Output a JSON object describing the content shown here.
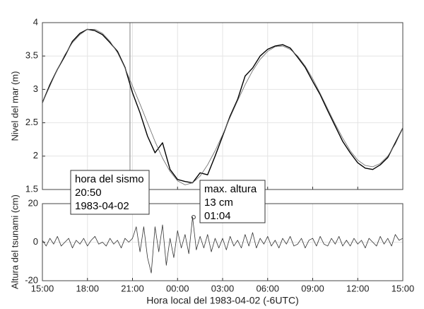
{
  "chart_data": [
    {
      "type": "line",
      "ylabel": "Nivel del mar (m)",
      "xlim": [
        0,
        24
      ],
      "xticks": [
        0,
        3,
        6,
        9,
        12,
        15,
        18,
        21,
        24
      ],
      "ylim": [
        1.5,
        4
      ],
      "yticks": [
        1.5,
        2,
        2.5,
        3,
        3.5,
        4
      ],
      "grid": true,
      "event_x": 5.833,
      "event_color": "#999999",
      "x": [
        0,
        0.5,
        1,
        1.5,
        2,
        2.5,
        3,
        3.5,
        4,
        4.5,
        5,
        5.5,
        6,
        6.5,
        7,
        7.5,
        8,
        8.5,
        9,
        9.5,
        10,
        10.5,
        11,
        11.5,
        12,
        12.5,
        13,
        13.5,
        14,
        14.5,
        15,
        15.5,
        16,
        16.5,
        17,
        17.5,
        18,
        18.5,
        19,
        19.5,
        20,
        20.5,
        21,
        21.5,
        22,
        22.5,
        23,
        23.5,
        24
      ],
      "series": [
        {
          "color": "#000000",
          "width": 1.4,
          "values": [
            2.8,
            3.07,
            3.3,
            3.5,
            3.72,
            3.84,
            3.9,
            3.88,
            3.82,
            3.7,
            3.57,
            3.33,
            2.95,
            2.65,
            2.3,
            2.05,
            2.2,
            1.8,
            1.65,
            1.62,
            1.6,
            1.75,
            1.72,
            2.0,
            2.3,
            2.6,
            2.85,
            3.2,
            3.32,
            3.5,
            3.6,
            3.65,
            3.67,
            3.62,
            3.48,
            3.33,
            3.12,
            2.92,
            2.68,
            2.45,
            2.22,
            2.05,
            1.9,
            1.82,
            1.8,
            1.87,
            1.98,
            2.2,
            2.42
          ]
        },
        {
          "color": "#666666",
          "width": 0.8,
          "values": [
            2.8,
            3.05,
            3.3,
            3.52,
            3.7,
            3.82,
            3.9,
            3.9,
            3.84,
            3.72,
            3.55,
            3.32,
            3.05,
            2.78,
            2.5,
            2.22,
            1.97,
            1.77,
            1.63,
            1.57,
            1.6,
            1.7,
            1.87,
            2.08,
            2.32,
            2.58,
            2.83,
            3.07,
            3.28,
            3.45,
            3.57,
            3.64,
            3.65,
            3.6,
            3.5,
            3.35,
            3.16,
            2.94,
            2.71,
            2.48,
            2.27,
            2.08,
            1.94,
            1.86,
            1.84,
            1.89,
            2.0,
            2.18,
            2.42
          ]
        }
      ],
      "annotations": [
        {
          "lines": [
            "hora del sismo",
            "20:50",
            "1983-04-02"
          ]
        },
        {
          "lines": [
            "max. altura",
            "13 cm",
            "01:04"
          ]
        }
      ]
    },
    {
      "type": "line",
      "ylabel": "Altura del tsunami (cm)",
      "xlabel": "Hora local del 1983-04-02 (-6UTC)",
      "xlim": [
        0,
        24
      ],
      "xticks": [
        {
          "value": 0,
          "label": "15:00"
        },
        {
          "value": 3,
          "label": "18:00"
        },
        {
          "value": 6,
          "label": "21:00"
        },
        {
          "value": 9,
          "label": "00:00"
        },
        {
          "value": 12,
          "label": "03:00"
        },
        {
          "value": 15,
          "label": "06:00"
        },
        {
          "value": 18,
          "label": "09:00"
        },
        {
          "value": 21,
          "label": "12:00"
        },
        {
          "value": 24,
          "label": "15:00"
        }
      ],
      "ylim": [
        -20,
        20
      ],
      "yticks": [
        -20,
        0,
        20
      ],
      "grid": true,
      "peak": {
        "x": 10.067,
        "y": 13
      },
      "x": [
        0,
        0.25,
        0.5,
        0.75,
        1,
        1.25,
        1.5,
        1.75,
        2,
        2.25,
        2.5,
        2.75,
        3,
        3.25,
        3.5,
        3.75,
        4,
        4.25,
        4.5,
        4.75,
        5,
        5.25,
        5.5,
        5.75,
        6,
        6.25,
        6.5,
        6.75,
        7,
        7.25,
        7.5,
        7.75,
        8,
        8.25,
        8.5,
        8.75,
        9,
        9.25,
        9.5,
        9.75,
        10,
        10.25,
        10.5,
        10.75,
        11,
        11.25,
        11.5,
        11.75,
        12,
        12.25,
        12.5,
        12.75,
        13,
        13.25,
        13.5,
        13.75,
        14,
        14.25,
        14.5,
        14.75,
        15,
        15.25,
        15.5,
        15.75,
        16,
        16.25,
        16.5,
        16.75,
        17,
        17.25,
        17.5,
        17.75,
        18,
        18.25,
        18.5,
        18.75,
        19,
        19.25,
        19.5,
        19.75,
        20,
        20.25,
        20.5,
        20.75,
        21,
        21.25,
        21.5,
        21.75,
        22,
        22.25,
        22.5,
        22.75,
        23,
        23.25,
        23.5,
        23.75,
        24
      ],
      "series": [
        {
          "color": "#333333",
          "width": 0.8,
          "values": [
            1,
            -2,
            2,
            -1,
            3,
            -2,
            0,
            2,
            -3,
            1,
            -1,
            2,
            -2,
            1,
            3,
            -1,
            0,
            -2,
            2,
            -1,
            1,
            -3,
            2,
            0,
            2,
            8,
            -5,
            8,
            -8,
            -16,
            8,
            -5,
            9,
            -12,
            2,
            -8,
            6,
            -3,
            4,
            -6,
            13,
            -4,
            3,
            -3,
            4,
            -5,
            2,
            -3,
            2,
            -4,
            3,
            -2,
            1,
            -3,
            4,
            -2,
            5,
            -3,
            2,
            -1,
            3,
            -2,
            1,
            -3,
            2,
            -1,
            3,
            -2,
            -1,
            2,
            -3,
            1,
            2,
            -2,
            3,
            -1,
            -2,
            2,
            -1,
            3,
            -2,
            1,
            -2,
            2,
            -1,
            1,
            -3,
            2,
            0,
            -2,
            3,
            -1,
            2,
            -2,
            4,
            1,
            2
          ]
        }
      ]
    }
  ]
}
